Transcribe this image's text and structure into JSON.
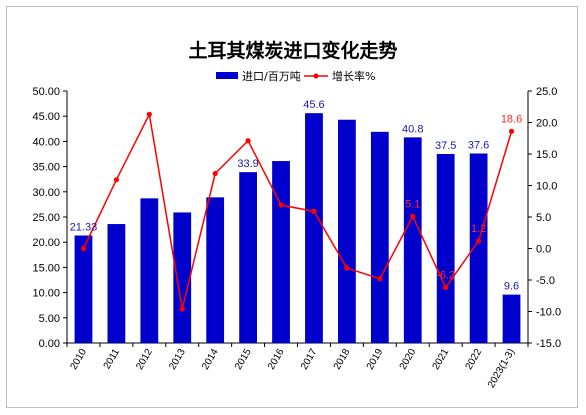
{
  "colors": {
    "bar": "#0000cc",
    "line": "#ff0000",
    "bar_label": "#1a1aa8",
    "line_label": "#ff2a2a"
  },
  "chart_data": {
    "type": "bar",
    "title": "土耳其煤炭进口变化走势",
    "categories": [
      "2010",
      "2011",
      "2012",
      "2013",
      "2014",
      "2015",
      "2016",
      "2017",
      "2018",
      "2019",
      "2020",
      "2021",
      "2022",
      "2023(1-3)"
    ],
    "series": [
      {
        "name": "进口/百万吨",
        "type": "bar",
        "axis": "left",
        "values": [
          21.33,
          23.6,
          28.7,
          25.9,
          28.9,
          33.9,
          36.1,
          45.6,
          44.3,
          41.9,
          40.8,
          37.5,
          37.6,
          9.6
        ]
      },
      {
        "name": "增长率%",
        "type": "line",
        "axis": "right",
        "values": [
          0.0,
          10.9,
          21.3,
          -9.6,
          11.9,
          17.1,
          6.9,
          5.9,
          -3.1,
          -4.8,
          5.1,
          -6.2,
          1.2,
          18.6
        ]
      }
    ],
    "bar_labels": [
      "21.33",
      "",
      "",
      "",
      "",
      "33.9",
      "",
      "45.6",
      "",
      "",
      "40.8",
      "37.5",
      "37.6",
      "9.6"
    ],
    "line_labels": [
      "",
      "",
      "",
      "",
      "",
      "",
      "",
      "",
      "",
      "",
      "5.1",
      "-6.2",
      "1.2",
      "18.6"
    ],
    "ylim_left": [
      0,
      50
    ],
    "ylim_right": [
      -15,
      25
    ],
    "yticks_left": [
      "0.00",
      "5.00",
      "10.00",
      "15.00",
      "20.00",
      "25.00",
      "30.00",
      "35.00",
      "40.00",
      "45.00",
      "50.00"
    ],
    "yticks_right": [
      "-15.0",
      "-10.0",
      "-5.0",
      "0.0",
      "5.0",
      "10.0",
      "15.0",
      "20.0",
      "25.0"
    ],
    "grid": false,
    "legend_position": "top"
  }
}
